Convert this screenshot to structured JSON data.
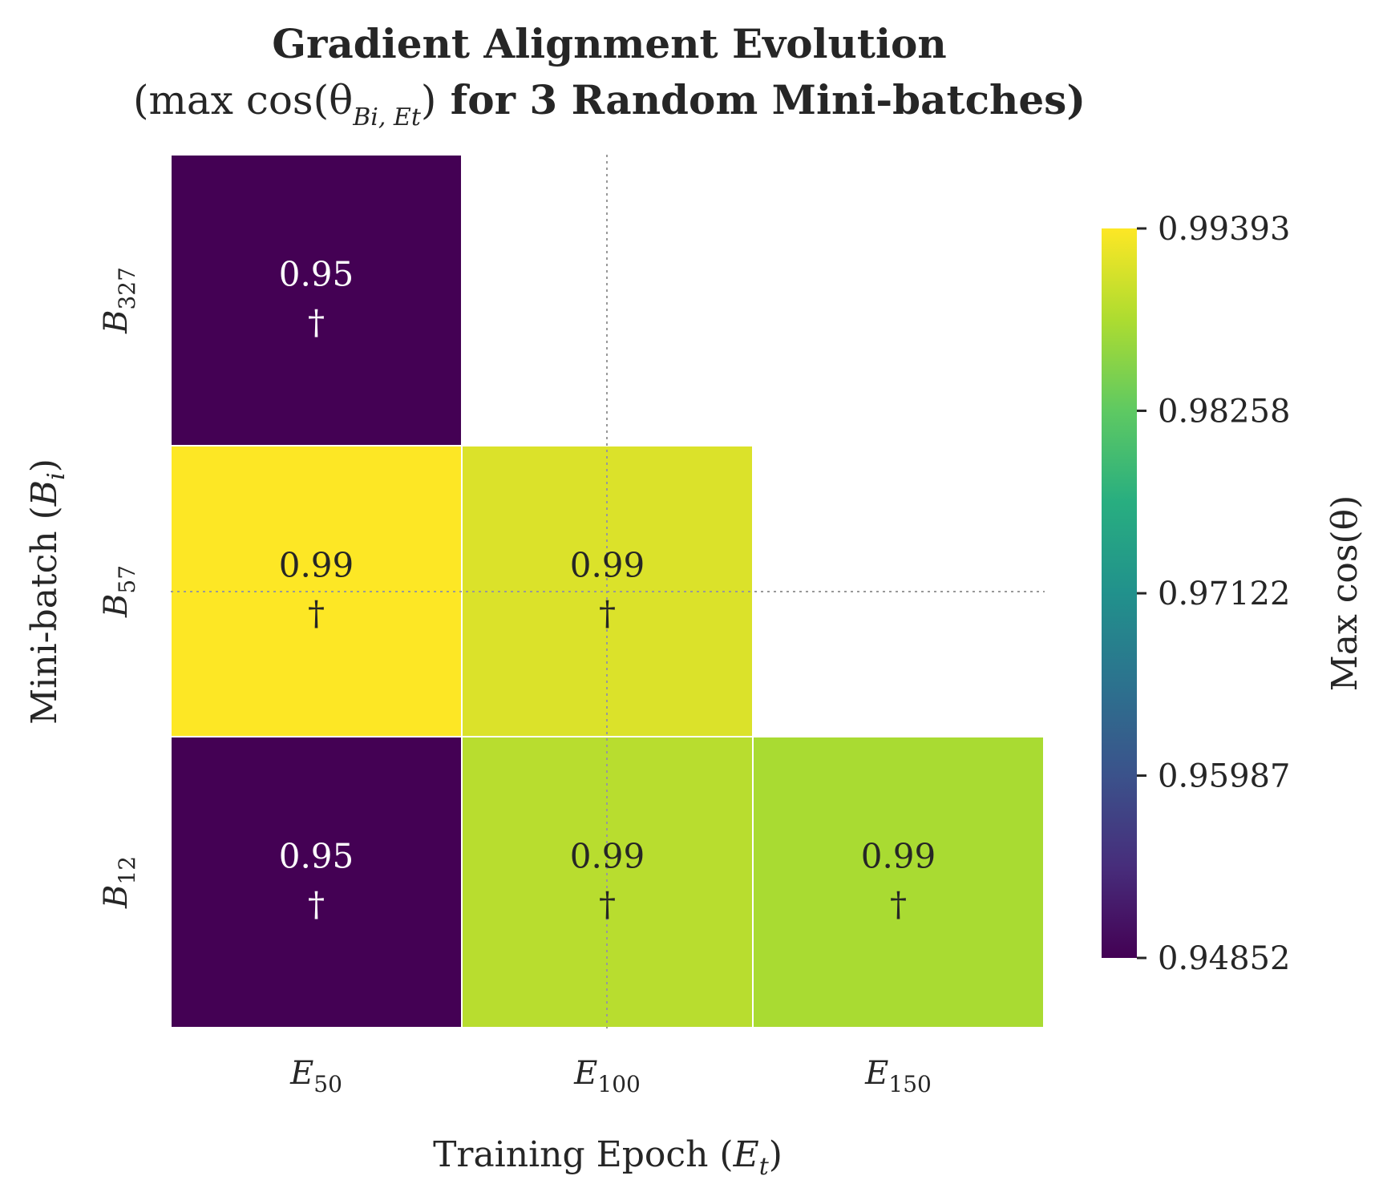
{
  "chart_data": {
    "type": "heatmap",
    "title_line1": "Gradient Alignment Evolution",
    "title_line2_math": "(max cos(θ",
    "title_line2_sub": "Bi, Et",
    "title_line2_close": ")",
    "title_line2_rest": " for 3 Random Mini-batches)",
    "xlabel_text": "Training Epoch (",
    "xlabel_var": "E",
    "xlabel_sub": "t",
    "xlabel_close": ")",
    "ylabel_text": "Mini-batch (",
    "ylabel_var": "B",
    "ylabel_sub": "i",
    "ylabel_close": ")",
    "x_categories": [
      {
        "var": "E",
        "sub": "50"
      },
      {
        "var": "E",
        "sub": "100"
      },
      {
        "var": "E",
        "sub": "150"
      }
    ],
    "y_categories": [
      {
        "var": "B",
        "sub": "327"
      },
      {
        "var": "B",
        "sub": "57"
      },
      {
        "var": "B",
        "sub": "12"
      }
    ],
    "values": [
      [
        0.9485,
        null,
        null
      ],
      [
        0.9939,
        0.9915,
        null
      ],
      [
        0.9485,
        0.989,
        0.988
      ]
    ],
    "annotations": [
      [
        "0.95",
        null,
        null
      ],
      [
        "0.99",
        "0.99",
        null
      ],
      [
        "0.95",
        "0.99",
        "0.99"
      ]
    ],
    "marker": "†",
    "colorbar": {
      "label": "Max cos(θ)",
      "min": 0.94852,
      "max": 0.99393,
      "ticks": [
        "0.94852",
        "0.95987",
        "0.97122",
        "0.98258",
        "0.99393"
      ],
      "colormap": "viridis"
    },
    "reference_lines": {
      "x_category": "E100",
      "y_category": "B57",
      "style": "dotted",
      "color": "#999999"
    }
  }
}
